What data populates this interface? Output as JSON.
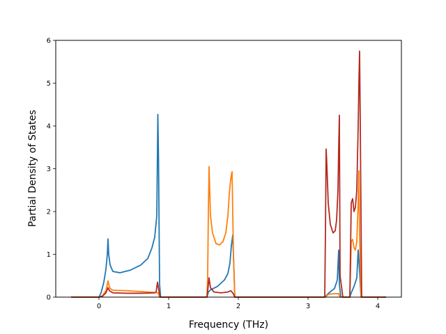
{
  "chart_data": {
    "type": "line",
    "title": "",
    "xlabel": "Frequency (THz)",
    "ylabel": "Partial Density of States",
    "xlim": [
      -0.62,
      4.34
    ],
    "ylim": [
      0,
      6
    ],
    "xticks": [
      0,
      1,
      2,
      3,
      4
    ],
    "yticks": [
      0,
      1,
      2,
      3,
      4,
      5,
      6
    ],
    "grid": false,
    "legend": "none",
    "series": [
      {
        "color": "#1f77b4",
        "x": [
          -0.4,
          0.0,
          0.03,
          0.07,
          0.1,
          0.12,
          0.13,
          0.14,
          0.16,
          0.2,
          0.3,
          0.45,
          0.6,
          0.7,
          0.76,
          0.8,
          0.83,
          0.845,
          0.855,
          0.87,
          0.885,
          0.9,
          1.0,
          1.2,
          1.4,
          1.55,
          1.57,
          1.6,
          1.7,
          1.8,
          1.85,
          1.88,
          1.9,
          1.92,
          1.95,
          2.0,
          2.5,
          3.0,
          3.24,
          3.27,
          3.3,
          3.38,
          3.42,
          3.44,
          3.45,
          3.47,
          3.5,
          3.6,
          3.62,
          3.66,
          3.7,
          3.72,
          3.74,
          3.76,
          3.8,
          4.0,
          4.12
        ],
        "y": [
          0,
          0,
          0.1,
          0.35,
          0.65,
          1.0,
          1.36,
          1.0,
          0.75,
          0.6,
          0.57,
          0.63,
          0.75,
          0.9,
          1.15,
          1.4,
          1.9,
          4.27,
          3.2,
          0.3,
          0.0,
          0,
          0,
          0,
          0,
          0,
          0.12,
          0.17,
          0.25,
          0.4,
          0.55,
          0.8,
          1.2,
          1.45,
          0.0,
          0,
          0,
          0,
          0,
          0.05,
          0.1,
          0.2,
          0.4,
          1.1,
          0.3,
          0.0,
          0,
          0,
          0.1,
          0.25,
          0.45,
          1.1,
          0.6,
          0.0,
          0,
          0,
          0
        ]
      },
      {
        "color": "#ff7f0e",
        "x": [
          -0.4,
          0.0,
          0.05,
          0.1,
          0.12,
          0.13,
          0.14,
          0.16,
          0.2,
          0.4,
          0.6,
          0.8,
          0.85,
          0.87,
          0.9,
          1.0,
          1.2,
          1.4,
          1.55,
          1.56,
          1.57,
          1.58,
          1.6,
          1.63,
          1.68,
          1.73,
          1.78,
          1.82,
          1.85,
          1.87,
          1.89,
          1.9,
          1.91,
          1.93,
          1.95,
          2.0,
          2.5,
          3.0,
          3.25,
          3.28,
          3.3,
          3.4,
          3.44,
          3.46,
          3.5,
          3.6,
          3.62,
          3.64,
          3.66,
          3.68,
          3.7,
          3.72,
          3.73,
          3.74,
          3.76,
          3.8,
          4.0,
          4.12
        ],
        "y": [
          0,
          0,
          0.03,
          0.15,
          0.3,
          0.38,
          0.3,
          0.2,
          0.16,
          0.15,
          0.13,
          0.11,
          0.1,
          0.0,
          0,
          0,
          0,
          0,
          0,
          0.5,
          2.0,
          3.05,
          1.9,
          1.5,
          1.25,
          1.22,
          1.3,
          1.5,
          1.9,
          2.4,
          2.75,
          2.85,
          2.93,
          1.0,
          0.0,
          0,
          0,
          0,
          0,
          0.05,
          0.07,
          0.08,
          0.08,
          0.0,
          0,
          0,
          1.3,
          1.35,
          1.15,
          1.1,
          1.3,
          2.2,
          2.95,
          1.5,
          0.0,
          0,
          0,
          0
        ]
      },
      {
        "color": "#b22a1f",
        "x": [
          -0.4,
          0.0,
          0.05,
          0.1,
          0.12,
          0.13,
          0.15,
          0.2,
          0.4,
          0.6,
          0.8,
          0.82,
          0.84,
          0.86,
          0.88,
          0.9,
          1.0,
          1.2,
          1.4,
          1.55,
          1.57,
          1.58,
          1.6,
          1.65,
          1.75,
          1.85,
          1.89,
          1.92,
          1.95,
          2.0,
          2.5,
          3.0,
          3.24,
          3.25,
          3.26,
          3.27,
          3.29,
          3.32,
          3.36,
          3.39,
          3.41,
          3.43,
          3.44,
          3.45,
          3.46,
          3.5,
          3.6,
          3.62,
          3.64,
          3.66,
          3.68,
          3.7,
          3.72,
          3.73,
          3.74,
          3.75,
          3.77,
          3.8,
          4.0,
          4.12
        ],
        "y": [
          0,
          0,
          0.02,
          0.1,
          0.18,
          0.22,
          0.15,
          0.1,
          0.09,
          0.09,
          0.1,
          0.12,
          0.35,
          0.15,
          0.0,
          0,
          0,
          0,
          0,
          0,
          0.3,
          0.45,
          0.22,
          0.12,
          0.1,
          0.12,
          0.15,
          0.1,
          0.0,
          0,
          0,
          0,
          0,
          1.5,
          3.46,
          3.1,
          2.2,
          1.7,
          1.5,
          1.55,
          1.8,
          2.5,
          3.5,
          4.25,
          0.5,
          0.0,
          0,
          2.2,
          2.3,
          2.0,
          2.1,
          2.5,
          4.0,
          5.0,
          5.75,
          4.0,
          0.0,
          0,
          0,
          0
        ]
      }
    ]
  }
}
